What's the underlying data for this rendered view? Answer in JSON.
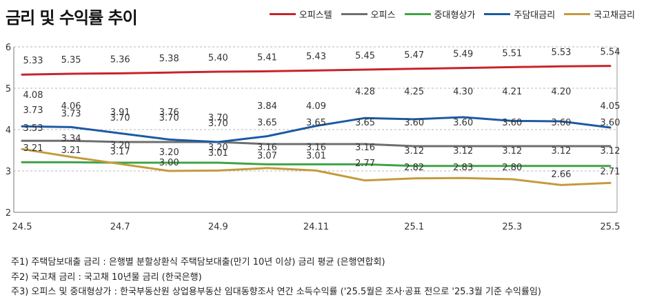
{
  "title": "금리 및 수익률 추이",
  "legend": {
    "items": [
      {
        "label": "오피스텔",
        "color": "#c8232c"
      },
      {
        "label": "오피스",
        "color": "#6e6e6e"
      },
      {
        "label": "중대형상가",
        "color": "#3fa346"
      },
      {
        "label": "주담대금리",
        "color": "#1c5aa3"
      },
      {
        "label": "국고채금리",
        "color": "#c49a3c"
      }
    ]
  },
  "chart_data": {
    "type": "line",
    "title": "금리 및 수익률 추이",
    "xlabel": "",
    "ylabel": "",
    "ylim": [
      2,
      6
    ],
    "y_ticks": [
      "2",
      "3",
      "4",
      "5",
      "6"
    ],
    "x_tick_labels": [
      "24.5",
      "24.7",
      "24.9",
      "24.11",
      "25.1",
      "25.3",
      "25.5"
    ],
    "grid": "dashed horizontal",
    "legend_position": "top-right",
    "x": [
      "24.5",
      "24.6",
      "24.7",
      "24.8",
      "24.9",
      "24.10",
      "24.11",
      "24.12",
      "25.1",
      "25.2",
      "25.3",
      "25.4",
      "25.5"
    ],
    "series": [
      {
        "name": "오피스텔",
        "color": "#c8232c",
        "values": [
          5.33,
          5.35,
          5.36,
          5.38,
          5.4,
          5.41,
          5.43,
          5.45,
          5.47,
          5.49,
          5.51,
          5.53,
          5.54
        ],
        "labels": [
          "5.33",
          "5.35",
          "5.36",
          "5.38",
          "5.40",
          "5.41",
          "5.43",
          "5.45",
          "5.47",
          "5.49",
          "5.51",
          "5.53",
          "5.54"
        ]
      },
      {
        "name": "오피스",
        "color": "#6e6e6e",
        "values": [
          3.73,
          3.73,
          3.7,
          3.7,
          3.7,
          3.65,
          3.65,
          3.65,
          3.6,
          3.6,
          3.6,
          3.6,
          3.6
        ],
        "labels": [
          "3.73",
          "3.73",
          "3.70",
          "3.70",
          "3.70",
          "3.65",
          "3.65",
          "3.65",
          "3.60",
          "3.60",
          "3.60",
          "3.60",
          "3.60"
        ]
      },
      {
        "name": "중대형상가",
        "color": "#3fa346",
        "values": [
          3.21,
          3.21,
          3.2,
          3.2,
          3.2,
          3.16,
          3.16,
          3.16,
          3.12,
          3.12,
          3.12,
          3.12,
          3.12
        ],
        "labels": [
          "3.21",
          "3.21",
          "3.20",
          "3.20",
          "3.20",
          "3.16",
          "3.16",
          "3.16",
          "3.12",
          "3.12",
          "3.12",
          "3.12",
          "3.12"
        ]
      },
      {
        "name": "주담대금리",
        "color": "#1c5aa3",
        "values": [
          4.08,
          4.06,
          3.91,
          3.76,
          3.7,
          3.84,
          4.09,
          4.28,
          4.25,
          4.3,
          4.21,
          4.2,
          4.05
        ],
        "labels": [
          "4.08",
          "4.06",
          "3.91",
          "3.76",
          "3.70",
          "3.84",
          "4.09",
          "4.28",
          "4.25",
          "4.30",
          "4.21",
          "4.20",
          "4.05"
        ]
      },
      {
        "name": "국고채금리",
        "color": "#c49a3c",
        "values": [
          3.53,
          3.34,
          3.17,
          3.0,
          3.01,
          3.07,
          3.01,
          2.77,
          2.82,
          2.83,
          2.8,
          2.66,
          2.71
        ],
        "labels": [
          "3.53",
          "3.34",
          "3.17",
          "3.00",
          "3.01",
          "3.07",
          "3.01",
          "2.77",
          "2.82",
          "2.83",
          "2.80",
          "2.66",
          "2.71"
        ]
      }
    ]
  },
  "footnotes": [
    "주1) 주택담보대출 금리 : 은행별 분할상환식 주택담보대출(만기 10년 이상) 금리 평균 (은행연합회)",
    "주2) 국고채 금리 : 국고채 10년물 금리 (한국은행)",
    "주3) 오피스 및 중대형상가 : 한국부동산원 상업용부동산 임대동향조사 연간 소득수익률 ('25.5월은 조사·공표 전으로 '25.3월 기준 수익률임)"
  ]
}
